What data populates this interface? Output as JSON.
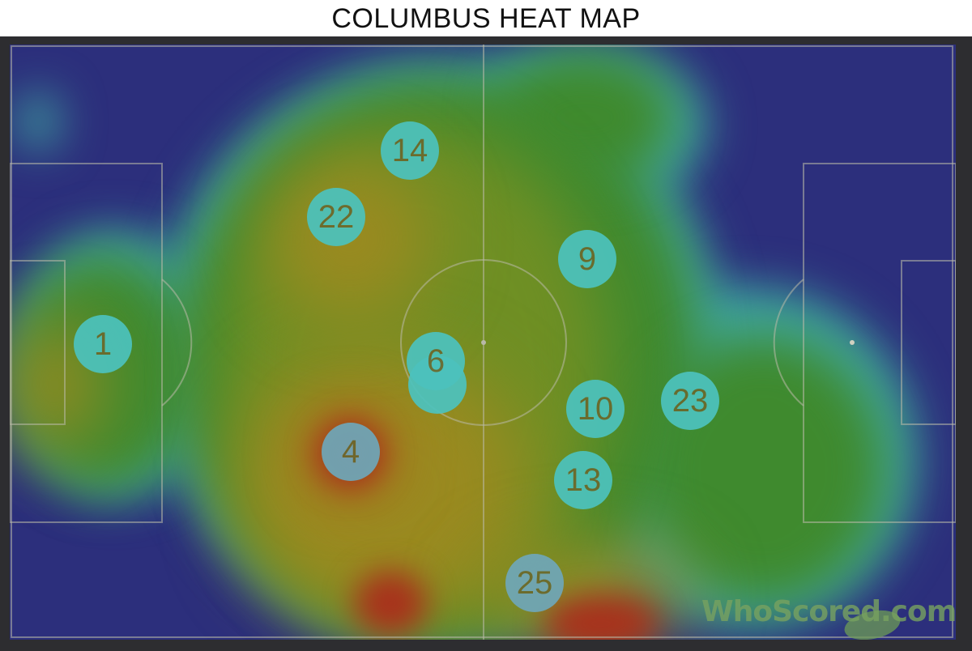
{
  "title": "COLUMBUS HEAT MAP",
  "watermark": "WhoScored.com",
  "colors": {
    "low": "#2c2f7c",
    "mid": "#3f8a2e",
    "high": "#a8321c",
    "marker": "#4cc2bd"
  },
  "players": [
    {
      "number": "1"
    },
    {
      "number": "14"
    },
    {
      "number": "22"
    },
    {
      "number": "9"
    },
    {
      "number": "6"
    },
    {
      "number": "10"
    },
    {
      "number": "23"
    },
    {
      "number": "4"
    },
    {
      "number": "13"
    },
    {
      "number": "25"
    }
  ]
}
